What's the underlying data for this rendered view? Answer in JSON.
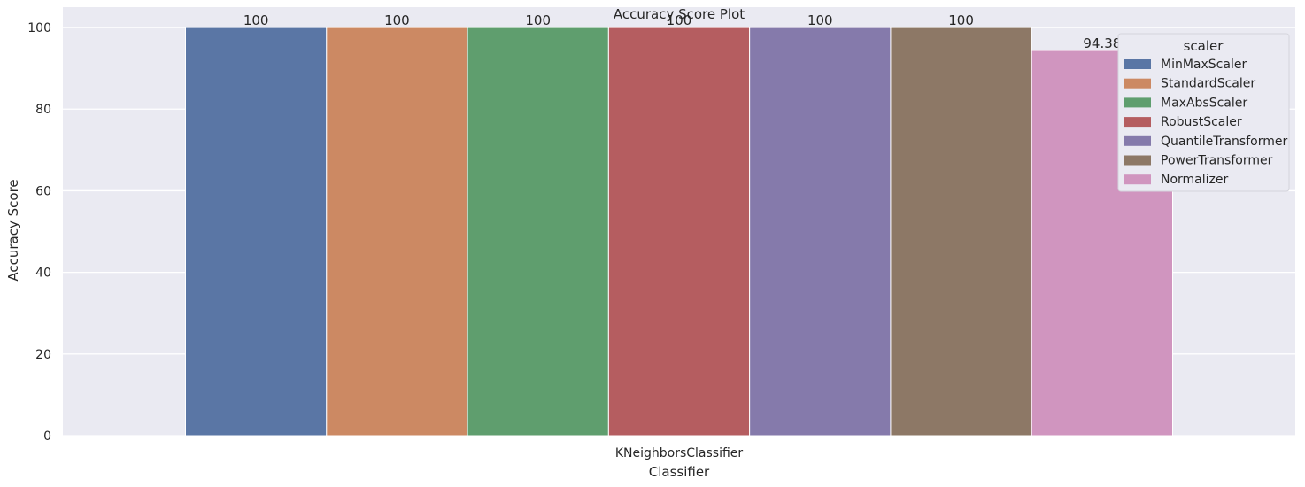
{
  "chart_data": {
    "type": "bar",
    "title": "Accuracy Score Plot",
    "xlabel": "Classifier",
    "ylabel": "Accuracy Score",
    "categories": [
      "KNeighborsClassifier"
    ],
    "ylim": [
      0,
      105
    ],
    "yticks": [
      0,
      20,
      40,
      60,
      80,
      100
    ],
    "grid": true,
    "legend": {
      "title": "scaler",
      "placement": "top-right"
    },
    "series": [
      {
        "name": "MinMaxScaler",
        "values": [
          100
        ],
        "label": "100",
        "color": "#5a76a5"
      },
      {
        "name": "StandardScaler",
        "values": [
          100
        ],
        "label": "100",
        "color": "#cc8963"
      },
      {
        "name": "MaxAbsScaler",
        "values": [
          100
        ],
        "label": "100",
        "color": "#5f9e6e"
      },
      {
        "name": "RobustScaler",
        "values": [
          100
        ],
        "label": "100",
        "color": "#b55d60"
      },
      {
        "name": "QuantileTransformer",
        "values": [
          100
        ],
        "label": "100",
        "color": "#857aab"
      },
      {
        "name": "PowerTransformer",
        "values": [
          100
        ],
        "label": "100",
        "color": "#8d7866"
      },
      {
        "name": "Normalizer",
        "values": [
          94.38
        ],
        "label": "94.38",
        "color": "#d095bf"
      }
    ],
    "background_color": "#eaeaf2"
  }
}
